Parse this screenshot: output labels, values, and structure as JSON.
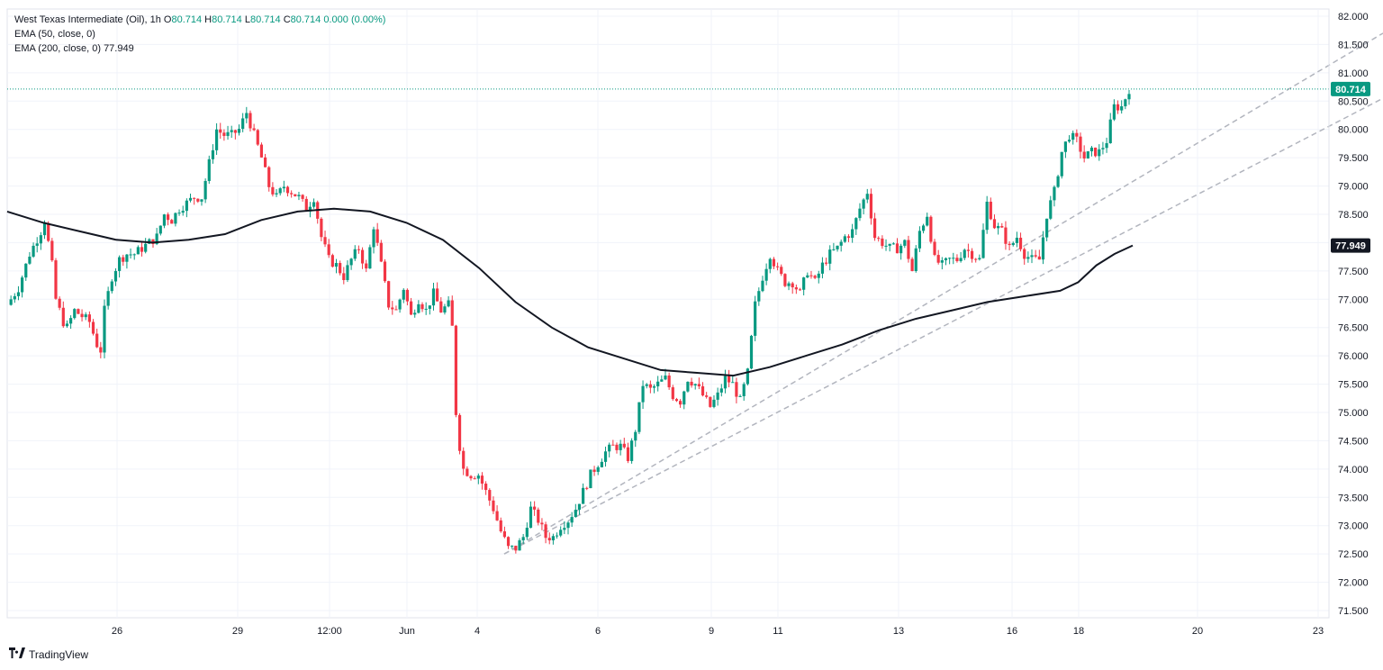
{
  "legend": {
    "symbol": "West Texas Intermediate (Oil), 1h",
    "o_label": "O",
    "o_val": "80.714",
    "h_label": "H",
    "h_val": "80.714",
    "l_label": "L",
    "l_val": "80.714",
    "c_label": "C",
    "c_val": "80.714",
    "change": "0.000 (0.00%)",
    "ema50": "EMA (50, close, 0)",
    "ema200": "EMA (200, close, 0)",
    "ema200_val": "77.949"
  },
  "logo": {
    "text": "TradingView"
  },
  "colors": {
    "up": "#089981",
    "down": "#f23645",
    "ema": "#131722",
    "trend": "#b2b5be",
    "grid": "#f0f3fa"
  },
  "chart_data": {
    "type": "candlestick",
    "y_axis": {
      "min": 71.5,
      "max": 82.0,
      "ticks": [
        "82.000",
        "81.500",
        "81.000",
        "80.500",
        "80.000",
        "79.500",
        "79.000",
        "78.500",
        "78.000",
        "77.500",
        "77.000",
        "76.500",
        "76.000",
        "75.500",
        "75.000",
        "74.500",
        "74.000",
        "73.500",
        "73.000",
        "72.500",
        "72.000",
        "71.500"
      ]
    },
    "x_axis": {
      "ticks": [
        "26",
        "29",
        "12:00",
        "Jun",
        "4",
        "6",
        "9",
        "11",
        "13",
        "16",
        "18",
        "20",
        "23"
      ]
    },
    "last_price": "80.714",
    "ema200_last": "77.949",
    "price_path": [
      [
        0,
        76.9
      ],
      [
        3,
        77.2
      ],
      [
        6,
        77.8
      ],
      [
        9,
        78.2
      ],
      [
        10,
        78.4
      ],
      [
        12,
        77.6
      ],
      [
        13,
        77.0
      ],
      [
        15,
        76.6
      ],
      [
        16,
        76.5
      ],
      [
        18,
        76.8
      ],
      [
        20,
        76.7
      ],
      [
        22,
        76.6
      ],
      [
        24,
        76.2
      ],
      [
        25,
        76.1
      ],
      [
        26,
        76.8
      ],
      [
        28,
        77.4
      ],
      [
        30,
        77.7
      ],
      [
        32,
        77.8
      ],
      [
        34,
        77.8
      ],
      [
        36,
        77.9
      ],
      [
        38,
        78.0
      ],
      [
        40,
        78.1
      ],
      [
        42,
        78.5
      ],
      [
        44,
        78.4
      ],
      [
        46,
        78.6
      ],
      [
        48,
        78.7
      ],
      [
        50,
        78.8
      ],
      [
        52,
        78.8
      ],
      [
        54,
        79.4
      ],
      [
        56,
        80.0
      ],
      [
        58,
        79.9
      ],
      [
        60,
        79.9
      ],
      [
        62,
        80.0
      ],
      [
        64,
        80.3
      ],
      [
        66,
        79.9
      ],
      [
        68,
        79.5
      ],
      [
        70,
        79.0
      ],
      [
        72,
        78.8
      ],
      [
        74,
        79.0
      ],
      [
        76,
        78.9
      ],
      [
        78,
        78.8
      ],
      [
        80,
        78.6
      ],
      [
        82,
        78.8
      ],
      [
        84,
        78.1
      ],
      [
        86,
        77.7
      ],
      [
        88,
        77.6
      ],
      [
        90,
        77.4
      ],
      [
        92,
        77.7
      ],
      [
        94,
        77.9
      ],
      [
        96,
        77.5
      ],
      [
        98,
        78.3
      ],
      [
        100,
        77.6
      ],
      [
        102,
        76.9
      ],
      [
        104,
        76.8
      ],
      [
        106,
        77.2
      ],
      [
        108,
        76.7
      ],
      [
        110,
        77.0
      ],
      [
        112,
        76.8
      ],
      [
        114,
        77.1
      ],
      [
        116,
        76.8
      ],
      [
        118,
        76.9
      ],
      [
        119,
        76.5
      ],
      [
        120,
        75.0
      ],
      [
        121,
        74.4
      ],
      [
        122,
        74.0
      ],
      [
        124,
        73.9
      ],
      [
        126,
        73.9
      ],
      [
        128,
        73.6
      ],
      [
        130,
        73.3
      ],
      [
        132,
        72.9
      ],
      [
        134,
        72.6
      ],
      [
        136,
        72.6
      ],
      [
        138,
        72.8
      ],
      [
        140,
        73.3
      ],
      [
        142,
        73.1
      ],
      [
        144,
        72.8
      ],
      [
        146,
        72.8
      ],
      [
        148,
        73.0
      ],
      [
        150,
        73.1
      ],
      [
        152,
        73.3
      ],
      [
        154,
        73.6
      ],
      [
        156,
        73.9
      ],
      [
        158,
        74.1
      ],
      [
        160,
        74.3
      ],
      [
        162,
        74.4
      ],
      [
        164,
        74.4
      ],
      [
        166,
        74.2
      ],
      [
        168,
        74.7
      ],
      [
        170,
        75.5
      ],
      [
        172,
        75.4
      ],
      [
        174,
        75.5
      ],
      [
        176,
        75.6
      ],
      [
        178,
        75.3
      ],
      [
        180,
        75.2
      ],
      [
        182,
        75.6
      ],
      [
        184,
        75.5
      ],
      [
        186,
        75.3
      ],
      [
        188,
        75.1
      ],
      [
        190,
        75.3
      ],
      [
        192,
        75.6
      ],
      [
        194,
        75.5
      ],
      [
        196,
        75.2
      ],
      [
        198,
        75.7
      ],
      [
        200,
        76.9
      ],
      [
        202,
        77.4
      ],
      [
        204,
        77.8
      ],
      [
        206,
        77.5
      ],
      [
        208,
        77.3
      ],
      [
        210,
        77.3
      ],
      [
        212,
        77.1
      ],
      [
        214,
        77.5
      ],
      [
        216,
        77.3
      ],
      [
        218,
        77.6
      ],
      [
        220,
        77.8
      ],
      [
        222,
        77.9
      ],
      [
        224,
        78.1
      ],
      [
        226,
        78.2
      ],
      [
        228,
        78.6
      ],
      [
        230,
        78.9
      ],
      [
        232,
        78.1
      ],
      [
        234,
        78.0
      ],
      [
        236,
        77.9
      ],
      [
        238,
        77.9
      ],
      [
        240,
        78.0
      ],
      [
        242,
        77.5
      ],
      [
        244,
        78.2
      ],
      [
        246,
        78.5
      ],
      [
        248,
        77.7
      ],
      [
        250,
        77.6
      ],
      [
        252,
        77.7
      ],
      [
        254,
        77.7
      ],
      [
        256,
        77.9
      ],
      [
        258,
        77.8
      ],
      [
        260,
        77.7
      ],
      [
        262,
        78.7
      ],
      [
        264,
        78.3
      ],
      [
        266,
        78.2
      ],
      [
        268,
        77.9
      ],
      [
        270,
        78.1
      ],
      [
        272,
        77.8
      ],
      [
        274,
        77.7
      ],
      [
        276,
        77.7
      ],
      [
        278,
        78.5
      ],
      [
        280,
        78.9
      ],
      [
        282,
        79.6
      ],
      [
        284,
        79.9
      ],
      [
        286,
        79.8
      ],
      [
        288,
        79.5
      ],
      [
        290,
        79.6
      ],
      [
        292,
        79.6
      ],
      [
        294,
        79.8
      ],
      [
        296,
        80.4
      ],
      [
        298,
        80.4
      ],
      [
        300,
        80.714
      ]
    ],
    "ema200_path": [
      [
        0,
        78.55
      ],
      [
        10,
        78.35
      ],
      [
        20,
        78.2
      ],
      [
        30,
        78.05
      ],
      [
        40,
        78.0
      ],
      [
        50,
        78.05
      ],
      [
        60,
        78.15
      ],
      [
        70,
        78.4
      ],
      [
        80,
        78.55
      ],
      [
        90,
        78.6
      ],
      [
        100,
        78.55
      ],
      [
        110,
        78.35
      ],
      [
        120,
        78.05
      ],
      [
        130,
        77.55
      ],
      [
        140,
        76.95
      ],
      [
        150,
        76.5
      ],
      [
        160,
        76.15
      ],
      [
        170,
        75.95
      ],
      [
        180,
        75.75
      ],
      [
        190,
        75.7
      ],
      [
        200,
        75.65
      ],
      [
        210,
        75.8
      ],
      [
        220,
        76.0
      ],
      [
        230,
        76.2
      ],
      [
        240,
        76.45
      ],
      [
        250,
        76.65
      ],
      [
        260,
        76.8
      ],
      [
        270,
        76.95
      ],
      [
        280,
        77.05
      ],
      [
        290,
        77.15
      ],
      [
        295,
        77.3
      ],
      [
        300,
        77.6
      ],
      [
        305,
        77.8
      ],
      [
        310,
        77.949
      ]
    ],
    "trend_lines": [
      {
        "from": [
          0,
          72.5
        ],
        "to": [
          1,
          81.6
        ]
      },
      {
        "from": [
          0,
          72.5
        ],
        "to": [
          1,
          80.5
        ]
      }
    ]
  }
}
